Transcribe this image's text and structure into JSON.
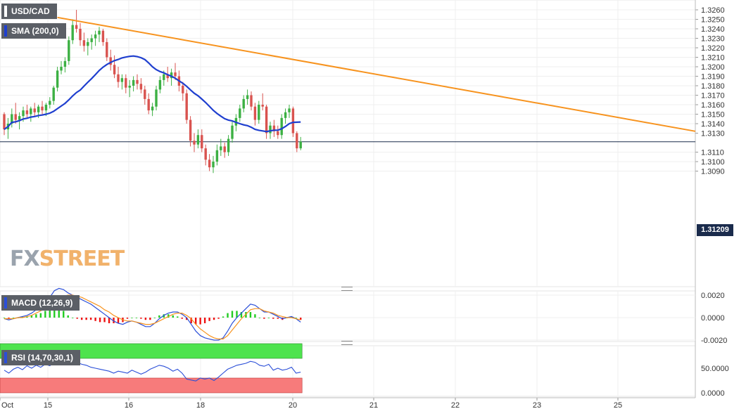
{
  "symbol_label": "USD/CAD",
  "sma_label": "SMA (200,0)",
  "macd_label": "MACD (12,26,9)",
  "rsi_label": "RSI (14,70,30,1)",
  "watermark": {
    "fx": "FX",
    "street": "STREET"
  },
  "current_price_label": "1.31209",
  "colors": {
    "up": "#3cb043",
    "down": "#d9534f",
    "sma": "#1f3fcf",
    "trend": "#f7931e",
    "macd_line": "#2b4fd8",
    "signal_line": "#f7931e",
    "hist_up": "#22cc22",
    "hist_down": "#ee1111",
    "rsi_line": "#2b4fd8",
    "rsi_over": "#4ee34e",
    "rsi_under": "#f77b7b",
    "price_line": "#1a2b4c"
  },
  "chart_data": [
    {
      "type": "candlestick",
      "title": "USD/CAD",
      "y_ticks": [
        "1.3260",
        "1.3250",
        "1.3240",
        "1.3230",
        "1.3220",
        "1.3210",
        "1.3200",
        "1.3190",
        "1.3180",
        "1.3170",
        "1.3160",
        "1.3150",
        "1.3140",
        "1.3130",
        "1.3110",
        "1.3100",
        "1.3090"
      ],
      "ylim": [
        1.3085,
        1.3265
      ],
      "x_ticks": [
        "Oct",
        "15",
        "16",
        "18",
        "20",
        "21",
        "22",
        "23",
        "25"
      ],
      "current_price": 1.31209,
      "candles": [
        [
          1.315,
          1.3152,
          1.3128,
          1.3134
        ],
        [
          1.3134,
          1.3146,
          1.3124,
          1.314
        ],
        [
          1.314,
          1.3156,
          1.3136,
          1.315
        ],
        [
          1.315,
          1.3162,
          1.314,
          1.3144
        ],
        [
          1.3144,
          1.3152,
          1.3134,
          1.3148
        ],
        [
          1.3148,
          1.3158,
          1.3142,
          1.3154
        ],
        [
          1.3154,
          1.316,
          1.3146,
          1.315
        ],
        [
          1.315,
          1.3158,
          1.3142,
          1.3156
        ],
        [
          1.3156,
          1.3162,
          1.3148,
          1.3152
        ],
        [
          1.3152,
          1.316,
          1.3146,
          1.3158
        ],
        [
          1.3158,
          1.3164,
          1.315,
          1.3154
        ],
        [
          1.3154,
          1.3162,
          1.3148,
          1.316
        ],
        [
          1.316,
          1.3168,
          1.3156,
          1.3164
        ],
        [
          1.3164,
          1.318,
          1.316,
          1.3178
        ],
        [
          1.3178,
          1.32,
          1.3174,
          1.3196
        ],
        [
          1.3196,
          1.3206,
          1.3192,
          1.32
        ],
        [
          1.32,
          1.321,
          1.3194,
          1.3206
        ],
        [
          1.3206,
          1.3232,
          1.3202,
          1.3228
        ],
        [
          1.3228,
          1.325,
          1.3224,
          1.3244
        ],
        [
          1.3244,
          1.326,
          1.3236,
          1.324
        ],
        [
          1.324,
          1.3246,
          1.3222,
          1.3228
        ],
        [
          1.3228,
          1.3236,
          1.3216,
          1.3222
        ],
        [
          1.3222,
          1.323,
          1.3212,
          1.3226
        ],
        [
          1.3226,
          1.3234,
          1.3218,
          1.323
        ],
        [
          1.323,
          1.3238,
          1.3222,
          1.3234
        ],
        [
          1.3234,
          1.3242,
          1.3226,
          1.3238
        ],
        [
          1.3238,
          1.324,
          1.3222,
          1.3226
        ],
        [
          1.3226,
          1.323,
          1.3206,
          1.321
        ],
        [
          1.321,
          1.3218,
          1.3196,
          1.3202
        ],
        [
          1.3202,
          1.3212,
          1.3188,
          1.3192
        ],
        [
          1.3192,
          1.32,
          1.3178,
          1.3184
        ],
        [
          1.3184,
          1.3192,
          1.3176,
          1.3188
        ],
        [
          1.3188,
          1.3192,
          1.3172,
          1.3178
        ],
        [
          1.3178,
          1.3186,
          1.3168,
          1.318
        ],
        [
          1.318,
          1.319,
          1.3174,
          1.3186
        ],
        [
          1.3186,
          1.3192,
          1.3176,
          1.3182
        ],
        [
          1.3182,
          1.3188,
          1.3172,
          1.3176
        ],
        [
          1.3176,
          1.318,
          1.316,
          1.3166
        ],
        [
          1.3166,
          1.3172,
          1.315,
          1.3154
        ],
        [
          1.3154,
          1.3162,
          1.3148,
          1.3158
        ],
        [
          1.3158,
          1.318,
          1.3154,
          1.3176
        ],
        [
          1.3176,
          1.319,
          1.3172,
          1.3186
        ],
        [
          1.3186,
          1.3196,
          1.318,
          1.3192
        ],
        [
          1.3192,
          1.32,
          1.3184,
          1.3188
        ],
        [
          1.3188,
          1.3198,
          1.318,
          1.3194
        ],
        [
          1.3194,
          1.3204,
          1.3186,
          1.319
        ],
        [
          1.319,
          1.3196,
          1.3174,
          1.318
        ],
        [
          1.318,
          1.3184,
          1.3164,
          1.3172
        ],
        [
          1.3172,
          1.3176,
          1.314,
          1.3144
        ],
        [
          1.3144,
          1.3148,
          1.3116,
          1.3122
        ],
        [
          1.3122,
          1.313,
          1.311,
          1.3118
        ],
        [
          1.3118,
          1.3134,
          1.3114,
          1.3128
        ],
        [
          1.3128,
          1.3134,
          1.311,
          1.3114
        ],
        [
          1.3114,
          1.3118,
          1.3096,
          1.3102
        ],
        [
          1.3102,
          1.3108,
          1.309,
          1.3094
        ],
        [
          1.3094,
          1.3106,
          1.3088,
          1.31
        ],
        [
          1.31,
          1.3118,
          1.3096,
          1.3112
        ],
        [
          1.3112,
          1.3124,
          1.3106,
          1.3116
        ],
        [
          1.3116,
          1.312,
          1.3104,
          1.311
        ],
        [
          1.311,
          1.3128,
          1.3106,
          1.3124
        ],
        [
          1.3124,
          1.3142,
          1.312,
          1.3138
        ],
        [
          1.3138,
          1.315,
          1.3132,
          1.3146
        ],
        [
          1.3146,
          1.316,
          1.3142,
          1.3156
        ],
        [
          1.3156,
          1.317,
          1.3152,
          1.3166
        ],
        [
          1.3166,
          1.3176,
          1.316,
          1.317
        ],
        [
          1.317,
          1.3174,
          1.3154,
          1.3158
        ],
        [
          1.3158,
          1.3162,
          1.3138,
          1.3144
        ],
        [
          1.3144,
          1.3164,
          1.314,
          1.316
        ],
        [
          1.316,
          1.3172,
          1.3154,
          1.3158
        ],
        [
          1.3158,
          1.316,
          1.3124,
          1.313
        ],
        [
          1.313,
          1.3142,
          1.3124,
          1.3138
        ],
        [
          1.3138,
          1.3144,
          1.3126,
          1.3132
        ],
        [
          1.3132,
          1.3138,
          1.3124,
          1.3128
        ],
        [
          1.3128,
          1.315,
          1.3124,
          1.3146
        ],
        [
          1.3146,
          1.3156,
          1.314,
          1.3152
        ],
        [
          1.3152,
          1.316,
          1.3146,
          1.3156
        ],
        [
          1.3156,
          1.3158,
          1.3126,
          1.313
        ],
        [
          1.313,
          1.3132,
          1.311,
          1.3114
        ],
        [
          1.3114,
          1.3126,
          1.3112,
          1.3121
        ]
      ]
    },
    {
      "type": "line",
      "title": "MACD (12,26,9)",
      "y_ticks": [
        "0.0020",
        "0.0000",
        "-0.0020"
      ],
      "ylim": [
        -0.0023,
        0.0025
      ],
      "series": [
        {
          "name": "MACD",
          "values": [
            -0.0001,
            -0.0002,
            -0.0001,
            0.0,
            0.0001,
            0.0002,
            0.0004,
            0.0007,
            0.001,
            0.0014,
            0.0018,
            0.0024,
            0.0026,
            0.0025,
            0.0022,
            0.002,
            0.0018,
            0.0016,
            0.0014,
            0.0012,
            0.0009,
            0.0006,
            0.0003,
            0.0,
            -0.0003,
            -0.0005,
            -0.0006,
            -0.0004,
            -0.0003,
            -0.0004,
            -0.0006,
            -0.0008,
            -0.0008,
            -0.0005,
            -0.0001,
            0.0002,
            0.0004,
            0.0005,
            0.0005,
            0.0003,
            0.0,
            -0.0006,
            -0.0012,
            -0.0016,
            -0.0018,
            -0.0019,
            -0.002,
            -0.002,
            -0.0018,
            -0.0012,
            -0.0005,
            0.0,
            0.0004,
            0.0008,
            0.0012,
            0.0011,
            0.0008,
            0.0005,
            0.0005,
            0.0003,
            0.0001,
            -0.0001,
            0.0,
            0.0001,
            -0.0001,
            -0.0004
          ]
        },
        {
          "name": "Signal",
          "values": [
            -0.0001,
            -0.0001,
            -0.0001,
            0.0,
            0.0,
            0.0001,
            0.0002,
            0.0004,
            0.0006,
            0.0008,
            0.0011,
            0.0014,
            0.0017,
            0.0019,
            0.002,
            0.002,
            0.0019,
            0.0018,
            0.0016,
            0.0014,
            0.0012,
            0.001,
            0.0007,
            0.0005,
            0.0002,
            0.0,
            -0.0002,
            -0.0003,
            -0.0003,
            -0.0004,
            -0.0005,
            -0.0006,
            -0.0006,
            -0.0005,
            -0.0003,
            -0.0001,
            0.0001,
            0.0003,
            0.0004,
            0.0004,
            0.0002,
            -0.0001,
            -0.0006,
            -0.001,
            -0.0013,
            -0.0016,
            -0.0018,
            -0.0019,
            -0.0019,
            -0.0016,
            -0.0011,
            -0.0006,
            -0.0001,
            0.0003,
            0.0007,
            0.0008,
            0.0008,
            0.0006,
            0.0005,
            0.0004,
            0.0002,
            0.0001,
            0.0,
            0.0,
            -0.0001,
            -0.0002
          ]
        },
        {
          "name": "Histogram",
          "values": [
            0.0,
            -0.0001,
            0.0,
            0.0,
            0.0001,
            0.0001,
            0.0002,
            0.0003,
            0.0004,
            0.0006,
            0.0007,
            0.001,
            0.0009,
            0.0006,
            0.0002,
            0.0,
            -0.0001,
            -0.0002,
            -0.0002,
            -0.0002,
            -0.0003,
            -0.0004,
            -0.0004,
            -0.0005,
            -0.0005,
            -0.0005,
            -0.0004,
            -0.0001,
            0.0,
            0.0,
            -0.0001,
            -0.0002,
            -0.0002,
            0.0,
            0.0002,
            0.0003,
            0.0003,
            0.0002,
            0.0001,
            -0.0001,
            -0.0002,
            -0.0005,
            -0.0006,
            -0.0006,
            -0.0005,
            -0.0003,
            -0.0002,
            -0.0001,
            0.0001,
            0.0004,
            0.0006,
            0.0006,
            0.0005,
            0.0005,
            0.0005,
            0.0003,
            0.0,
            -0.0001,
            0.0,
            -0.0001,
            -0.0001,
            -0.0002,
            0.0,
            0.0001,
            0.0,
            -0.0002
          ]
        }
      ]
    },
    {
      "type": "line",
      "title": "RSI (14,70,30,1)",
      "y_ticks": [
        "50.0000",
        "0.0000"
      ],
      "ylim": [
        0,
        100
      ],
      "bands": {
        "overbought": 70,
        "oversold": 30
      },
      "series": [
        {
          "name": "RSI",
          "values": [
            46,
            40,
            48,
            52,
            47,
            55,
            50,
            56,
            52,
            58,
            55,
            62,
            66,
            70,
            72,
            68,
            62,
            58,
            56,
            52,
            50,
            48,
            46,
            44,
            40,
            44,
            42,
            40,
            46,
            42,
            38,
            42,
            48,
            52,
            56,
            54,
            50,
            44,
            48,
            40,
            28,
            26,
            24,
            30,
            28,
            30,
            25,
            32,
            40,
            48,
            52,
            56,
            58,
            60,
            64,
            62,
            56,
            54,
            58,
            46,
            50,
            46,
            48,
            52,
            40,
            42
          ]
        }
      ]
    }
  ]
}
